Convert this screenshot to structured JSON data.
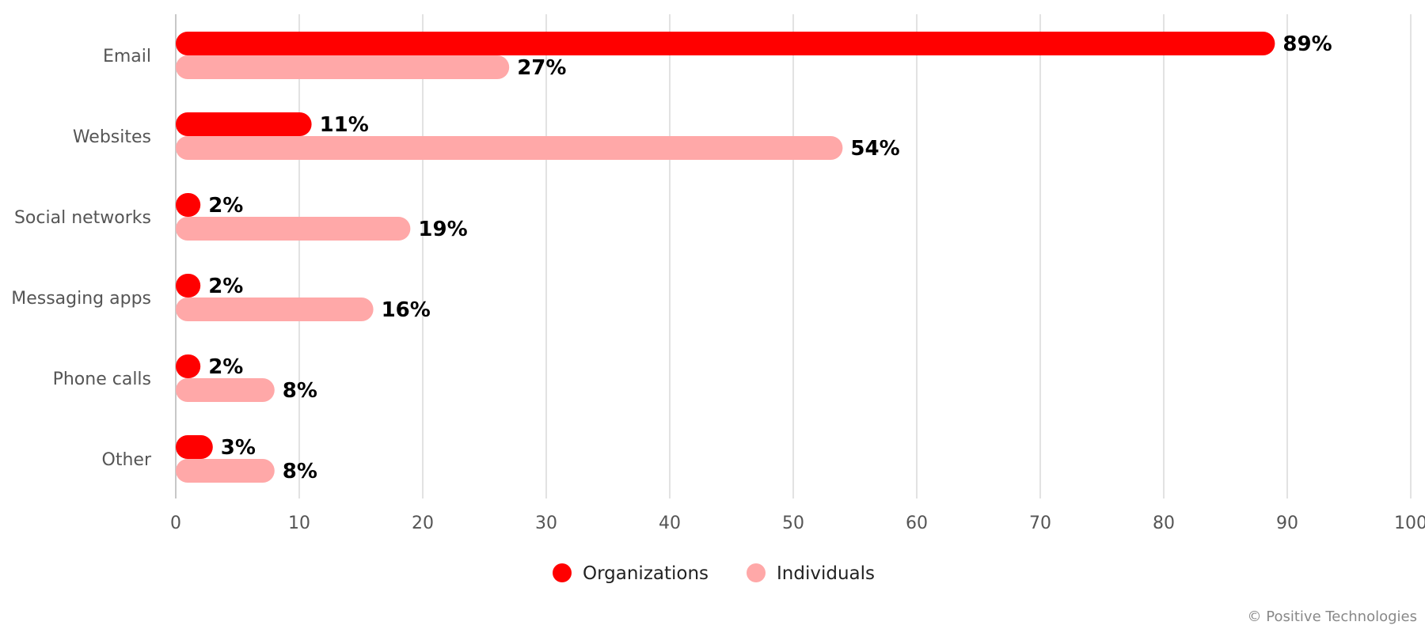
{
  "chart_data": {
    "type": "bar",
    "orientation": "horizontal",
    "categories": [
      "Email",
      "Websites",
      "Social networks",
      "Messaging apps",
      "Phone calls",
      "Other"
    ],
    "series": [
      {
        "name": "Organizations",
        "color": "#ff0000",
        "values": [
          89,
          11,
          2,
          2,
          2,
          3
        ],
        "labels": [
          "89%",
          "11%",
          "2%",
          "2%",
          "2%",
          "3%"
        ]
      },
      {
        "name": "Individuals",
        "color": "#ffa8a8",
        "values": [
          27,
          54,
          19,
          16,
          8,
          8
        ],
        "labels": [
          "27%",
          "54%",
          "19%",
          "16%",
          "8%",
          "8%"
        ]
      }
    ],
    "xlim": [
      0,
      100
    ],
    "xticks": [
      "0",
      "10",
      "20",
      "30",
      "40",
      "50",
      "60",
      "70",
      "80",
      "90",
      "100"
    ],
    "grid": true,
    "legend_position": "bottom-center"
  },
  "credit": "© Positive Technologies"
}
